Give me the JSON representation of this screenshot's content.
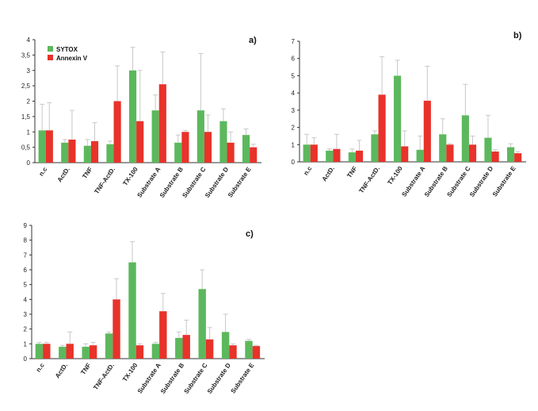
{
  "colors": {
    "sytox": "#5cb85c",
    "annexin": "#e8322a",
    "error": "#c8c8c8",
    "axis": "#333333"
  },
  "legend": {
    "position": "top-left",
    "entries": [
      "SYTOX",
      "Annexin V"
    ]
  },
  "chart_data": [
    {
      "id": "a",
      "type": "bar",
      "panel_label": "a)",
      "categories": [
        "n.c",
        "ActD.",
        "TNF",
        "TNF-ActD.",
        "TX-100",
        "Substrate A",
        "Substrate B",
        "Substrate C",
        "Substrate D",
        "Substrate E"
      ],
      "ylim": [
        0,
        4
      ],
      "yticks": [
        "0",
        "0,5",
        "1",
        "1,5",
        "2",
        "2,5",
        "3",
        "3,5",
        "4"
      ],
      "show_legend": true,
      "series": [
        {
          "name": "SYTOX",
          "values": [
            1.05,
            0.65,
            0.55,
            0.6,
            3.0,
            1.7,
            0.65,
            1.7,
            1.35,
            0.9
          ],
          "errors": [
            0.85,
            0.1,
            0.2,
            0.1,
            0.75,
            0.5,
            0.25,
            1.85,
            0.4,
            0.2
          ]
        },
        {
          "name": "Annexin V",
          "values": [
            1.05,
            0.75,
            0.7,
            2.0,
            1.35,
            2.55,
            1.0,
            1.0,
            0.65,
            0.5
          ],
          "errors": [
            0.9,
            0.95,
            0.6,
            1.15,
            1.65,
            1.05,
            0.05,
            0.55,
            0.35,
            0.1
          ]
        }
      ]
    },
    {
      "id": "b",
      "type": "bar",
      "panel_label": "b)",
      "categories": [
        "n.c",
        "ActD.",
        "TNF",
        "TNF-ActD.",
        "TX-100",
        "Substrate A",
        "Substrate B",
        "Substrate C",
        "Substrate D",
        "Substrate E"
      ],
      "ylim": [
        0,
        7
      ],
      "yticks": [
        "0",
        "1",
        "2",
        "3",
        "4",
        "5",
        "6",
        "7"
      ],
      "show_legend": false,
      "series": [
        {
          "name": "SYTOX",
          "values": [
            1.0,
            0.65,
            0.55,
            1.6,
            5.0,
            0.7,
            1.6,
            2.7,
            1.4,
            0.85
          ],
          "errors": [
            0.6,
            0.1,
            0.2,
            0.2,
            0.9,
            0.8,
            0.9,
            1.8,
            1.3,
            0.2
          ]
        },
        {
          "name": "Annexin V",
          "values": [
            1.0,
            0.75,
            0.65,
            3.9,
            0.9,
            3.55,
            1.0,
            1.0,
            0.6,
            0.5
          ],
          "errors": [
            0.4,
            0.85,
            0.6,
            2.2,
            0.9,
            2.0,
            0.05,
            0.5,
            0.1,
            0.1
          ]
        }
      ]
    },
    {
      "id": "c",
      "type": "bar",
      "panel_label": "c)",
      "categories": [
        "n.c",
        "ActD.",
        "TNF",
        "TNF-ActD.",
        "TX-100",
        "Substrate A",
        "Substrate B",
        "Substrate C",
        "Substrate D",
        "Substrate E"
      ],
      "ylim": [
        0,
        9
      ],
      "yticks": [
        "0",
        "1",
        "2",
        "3",
        "4",
        "5",
        "6",
        "7",
        "8",
        "9"
      ],
      "show_legend": false,
      "series": [
        {
          "name": "SYTOX",
          "values": [
            1.0,
            0.8,
            0.8,
            1.7,
            6.5,
            1.0,
            1.4,
            4.7,
            1.8,
            1.2
          ],
          "errors": [
            0.1,
            0.1,
            0.2,
            0.1,
            1.4,
            0.1,
            0.4,
            1.3,
            1.2,
            0.1
          ]
        },
        {
          "name": "Annexin V",
          "values": [
            1.0,
            1.0,
            0.9,
            4.0,
            0.9,
            3.2,
            1.6,
            1.3,
            0.9,
            0.85
          ],
          "errors": [
            0.1,
            0.8,
            0.2,
            1.4,
            0.1,
            1.2,
            1.0,
            0.8,
            0.1,
            0.05
          ]
        }
      ]
    }
  ]
}
